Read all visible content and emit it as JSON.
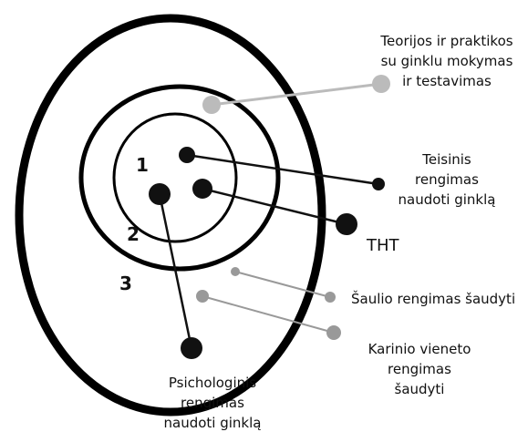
{
  "rings": [
    "1",
    "2",
    "3"
  ],
  "labels": [
    {
      "lines": [
        "Teorijos ir praktikos",
        "su ginklu mokymas",
        "ir testavimas"
      ]
    },
    {
      "lines": [
        "Teisinis",
        "rengimas",
        "naudoti ginklą"
      ]
    },
    {
      "lines": [
        "THT"
      ]
    },
    {
      "lines": [
        "Šaulio rengimas šaudyti"
      ]
    },
    {
      "lines": [
        "Karinio vieneto",
        "rengimas",
        "šaudyti"
      ]
    },
    {
      "lines": [
        "Psichologinis",
        "rengimas",
        "naudoti ginklą"
      ]
    }
  ]
}
